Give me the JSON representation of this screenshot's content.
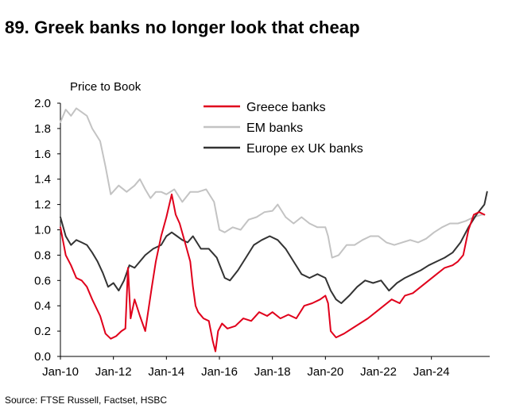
{
  "title": "89. Greek banks no longer look that cheap",
  "source": "Source: FTSE Russell, Factset, HSBC",
  "chart_data": {
    "type": "line",
    "ylabel": "Price to Book",
    "ylim": [
      0.0,
      2.0
    ],
    "yticks": [
      0.0,
      0.2,
      0.4,
      0.6,
      0.8,
      1.0,
      1.2,
      1.4,
      1.6,
      1.8,
      2.0
    ],
    "ytick_labels": [
      "0.0",
      "0.2",
      "0.4",
      "0.6",
      "0.8",
      "1.0",
      "1.2",
      "1.4",
      "1.6",
      "1.8",
      "2.0"
    ],
    "xlim": [
      2010.0,
      2026.2
    ],
    "xticks": [
      2010,
      2012,
      2014,
      2016,
      2018,
      2020,
      2022,
      2024
    ],
    "xtick_labels": [
      "Jan-10",
      "Jan-12",
      "Jan-14",
      "Jan-16",
      "Jan-18",
      "Jan-20",
      "Jan-22",
      "Jan-24"
    ],
    "legend": "top-center",
    "series": [
      {
        "name": "Greece banks",
        "color": "#e0001b",
        "x": [
          2010.0,
          2010.2,
          2010.4,
          2010.6,
          2010.8,
          2011.0,
          2011.2,
          2011.5,
          2011.7,
          2011.9,
          2012.1,
          2012.3,
          2012.45,
          2012.55,
          2012.65,
          2012.8,
          2013.0,
          2013.2,
          2013.45,
          2013.6,
          2013.8,
          2014.0,
          2014.2,
          2014.35,
          2014.5,
          2014.7,
          2014.9,
          2015.0,
          2015.1,
          2015.2,
          2015.4,
          2015.6,
          2015.75,
          2015.85,
          2015.95,
          2016.1,
          2016.3,
          2016.6,
          2016.9,
          2017.2,
          2017.5,
          2017.8,
          2018.0,
          2018.3,
          2018.6,
          2018.9,
          2019.2,
          2019.5,
          2019.8,
          2020.0,
          2020.1,
          2020.2,
          2020.4,
          2020.7,
          2021.0,
          2021.3,
          2021.6,
          2021.9,
          2022.2,
          2022.5,
          2022.8,
          2023.0,
          2023.3,
          2023.6,
          2023.9,
          2024.2,
          2024.5,
          2024.8,
          2025.0,
          2025.2,
          2025.4,
          2025.6,
          2025.8,
          2026.0
        ],
        "values": [
          1.02,
          0.8,
          0.72,
          0.62,
          0.6,
          0.55,
          0.45,
          0.32,
          0.18,
          0.14,
          0.16,
          0.2,
          0.22,
          0.7,
          0.3,
          0.45,
          0.32,
          0.2,
          0.55,
          0.75,
          0.95,
          1.1,
          1.28,
          1.12,
          1.05,
          0.9,
          0.75,
          0.55,
          0.4,
          0.35,
          0.3,
          0.28,
          0.12,
          0.04,
          0.2,
          0.26,
          0.22,
          0.24,
          0.3,
          0.28,
          0.35,
          0.32,
          0.35,
          0.3,
          0.33,
          0.3,
          0.4,
          0.42,
          0.45,
          0.48,
          0.42,
          0.2,
          0.15,
          0.18,
          0.22,
          0.26,
          0.3,
          0.35,
          0.4,
          0.45,
          0.42,
          0.48,
          0.5,
          0.55,
          0.6,
          0.65,
          0.7,
          0.72,
          0.75,
          0.8,
          1.0,
          1.12,
          1.14,
          1.12
        ]
      },
      {
        "name": "EM banks",
        "color": "#c3c3c3",
        "x": [
          2010.0,
          2010.2,
          2010.4,
          2010.6,
          2010.8,
          2011.0,
          2011.2,
          2011.5,
          2011.7,
          2011.9,
          2012.2,
          2012.5,
          2012.8,
          2013.0,
          2013.2,
          2013.4,
          2013.6,
          2013.8,
          2014.0,
          2014.3,
          2014.6,
          2014.9,
          2015.2,
          2015.5,
          2015.8,
          2016.0,
          2016.2,
          2016.5,
          2016.8,
          2017.1,
          2017.4,
          2017.7,
          2018.0,
          2018.2,
          2018.5,
          2018.8,
          2019.1,
          2019.4,
          2019.7,
          2020.0,
          2020.1,
          2020.25,
          2020.5,
          2020.8,
          2021.1,
          2021.4,
          2021.7,
          2022.0,
          2022.3,
          2022.6,
          2022.9,
          2023.2,
          2023.5,
          2023.8,
          2024.1,
          2024.4,
          2024.7,
          2025.0,
          2025.3,
          2025.6,
          2025.9,
          2026.0
        ],
        "values": [
          1.85,
          1.95,
          1.9,
          1.96,
          1.93,
          1.9,
          1.8,
          1.7,
          1.5,
          1.28,
          1.35,
          1.3,
          1.35,
          1.4,
          1.32,
          1.25,
          1.3,
          1.3,
          1.28,
          1.32,
          1.22,
          1.3,
          1.3,
          1.32,
          1.22,
          1.0,
          0.98,
          1.02,
          1.0,
          1.08,
          1.1,
          1.14,
          1.15,
          1.2,
          1.1,
          1.05,
          1.1,
          1.05,
          1.02,
          1.02,
          0.95,
          0.78,
          0.8,
          0.88,
          0.88,
          0.92,
          0.95,
          0.95,
          0.9,
          0.88,
          0.9,
          0.92,
          0.9,
          0.93,
          0.98,
          1.02,
          1.05,
          1.05,
          1.07,
          1.1,
          1.12,
          1.12
        ]
      },
      {
        "name": "Europe ex UK banks",
        "color": "#333333",
        "x": [
          2010.0,
          2010.2,
          2010.4,
          2010.6,
          2010.8,
          2011.0,
          2011.2,
          2011.4,
          2011.6,
          2011.8,
          2012.0,
          2012.2,
          2012.4,
          2012.6,
          2012.8,
          2013.0,
          2013.2,
          2013.5,
          2013.8,
          2014.0,
          2014.2,
          2014.4,
          2014.6,
          2014.8,
          2015.0,
          2015.3,
          2015.6,
          2015.9,
          2016.2,
          2016.4,
          2016.7,
          2017.0,
          2017.3,
          2017.6,
          2017.9,
          2018.2,
          2018.5,
          2018.8,
          2019.1,
          2019.4,
          2019.7,
          2020.0,
          2020.2,
          2020.4,
          2020.6,
          2020.9,
          2021.2,
          2021.5,
          2021.8,
          2022.1,
          2022.4,
          2022.7,
          2023.0,
          2023.3,
          2023.6,
          2023.9,
          2024.2,
          2024.5,
          2024.8,
          2025.1,
          2025.4,
          2025.7,
          2026.0,
          2026.1
        ],
        "values": [
          1.1,
          0.95,
          0.88,
          0.92,
          0.9,
          0.88,
          0.82,
          0.75,
          0.66,
          0.55,
          0.58,
          0.52,
          0.6,
          0.72,
          0.7,
          0.75,
          0.8,
          0.85,
          0.88,
          0.95,
          0.98,
          0.95,
          0.92,
          0.9,
          0.95,
          0.85,
          0.85,
          0.78,
          0.62,
          0.6,
          0.68,
          0.78,
          0.88,
          0.92,
          0.95,
          0.92,
          0.85,
          0.75,
          0.65,
          0.62,
          0.65,
          0.62,
          0.52,
          0.45,
          0.42,
          0.48,
          0.55,
          0.6,
          0.58,
          0.6,
          0.52,
          0.58,
          0.62,
          0.65,
          0.68,
          0.72,
          0.75,
          0.78,
          0.82,
          0.9,
          1.02,
          1.12,
          1.2,
          1.3
        ]
      }
    ]
  }
}
